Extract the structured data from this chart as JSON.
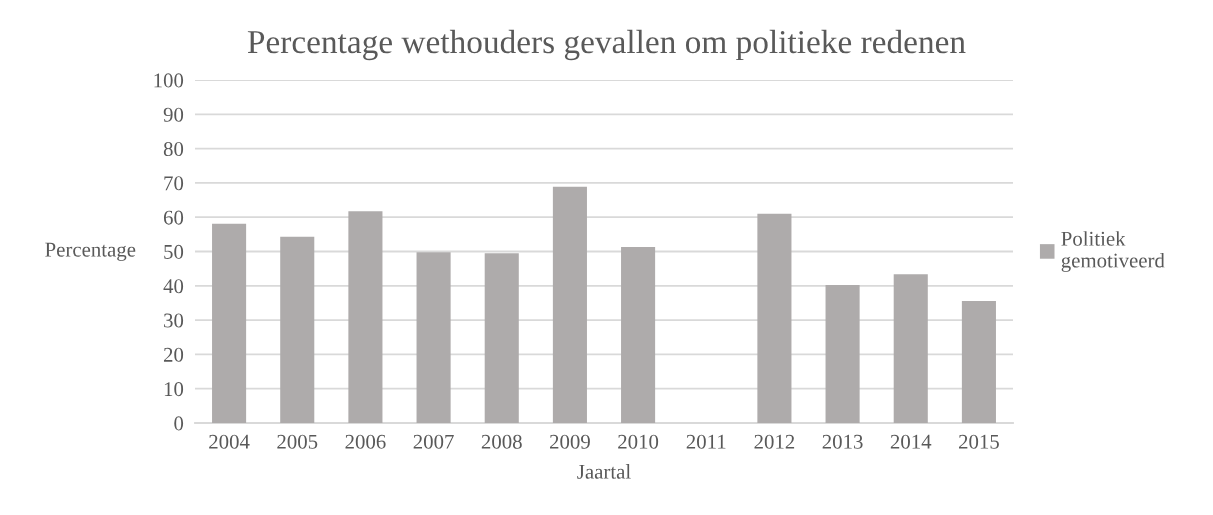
{
  "chart_data": {
    "type": "bar",
    "title": "Percentage wethouders gevallen om politieke redenen",
    "xlabel": "Jaartal",
    "ylabel": "Percentage",
    "categories": [
      "2004",
      "2005",
      "2006",
      "2007",
      "2008",
      "2009",
      "2010",
      "2011",
      "2012",
      "2013",
      "2014",
      "2015"
    ],
    "series": [
      {
        "name": "Politiek gemotiveerd",
        "color": "#aeabab",
        "values": [
          58.1,
          54.3,
          61.7,
          49.8,
          49.5,
          68.9,
          51.3,
          null,
          61.0,
          40.2,
          43.4,
          35.6
        ]
      }
    ],
    "ylim": [
      0,
      100
    ],
    "yticks": [
      0,
      10,
      20,
      30,
      40,
      50,
      60,
      70,
      80,
      90,
      100
    ],
    "grid": "y",
    "legend": "right"
  }
}
